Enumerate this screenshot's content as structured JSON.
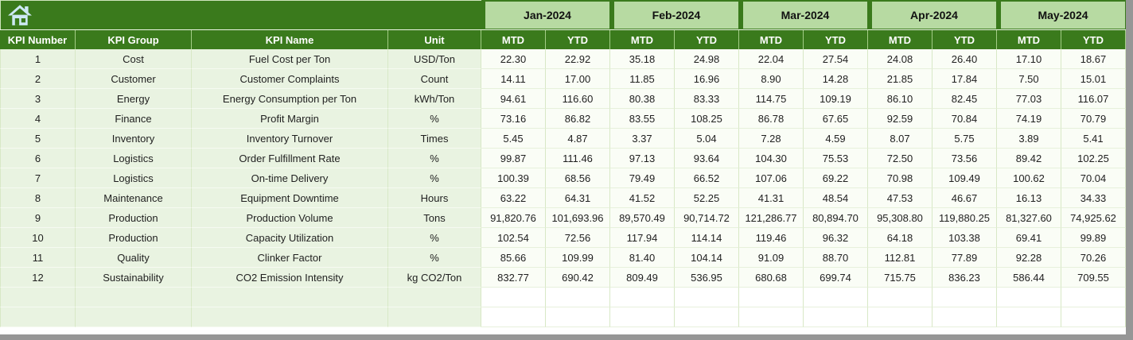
{
  "toolbar": {
    "home_icon": "home"
  },
  "left_columns": [
    "KPI Number",
    "KPI Group",
    "KPI Name",
    "Unit"
  ],
  "months": [
    "Jan-2024",
    "Feb-2024",
    "Mar-2024",
    "Apr-2024",
    "May-2024"
  ],
  "sub_columns": [
    "MTD",
    "YTD"
  ],
  "rows": [
    {
      "number": "1",
      "group": "Cost",
      "name": "Fuel Cost per Ton",
      "unit": "USD/Ton",
      "values": [
        "22.30",
        "22.92",
        "35.18",
        "24.98",
        "22.04",
        "27.54",
        "24.08",
        "26.40",
        "17.10",
        "18.67"
      ]
    },
    {
      "number": "2",
      "group": "Customer",
      "name": "Customer Complaints",
      "unit": "Count",
      "values": [
        "14.11",
        "17.00",
        "11.85",
        "16.96",
        "8.90",
        "14.28",
        "21.85",
        "17.84",
        "7.50",
        "15.01"
      ]
    },
    {
      "number": "3",
      "group": "Energy",
      "name": "Energy Consumption per Ton",
      "unit": "kWh/Ton",
      "values": [
        "94.61",
        "116.60",
        "80.38",
        "83.33",
        "114.75",
        "109.19",
        "86.10",
        "82.45",
        "77.03",
        "116.07"
      ]
    },
    {
      "number": "4",
      "group": "Finance",
      "name": "Profit Margin",
      "unit": "%",
      "values": [
        "73.16",
        "86.82",
        "83.55",
        "108.25",
        "86.78",
        "67.65",
        "92.59",
        "70.84",
        "74.19",
        "70.79"
      ]
    },
    {
      "number": "5",
      "group": "Inventory",
      "name": "Inventory Turnover",
      "unit": "Times",
      "values": [
        "5.45",
        "4.87",
        "3.37",
        "5.04",
        "7.28",
        "4.59",
        "8.07",
        "5.75",
        "3.89",
        "5.41"
      ]
    },
    {
      "number": "6",
      "group": "Logistics",
      "name": "Order Fulfillment Rate",
      "unit": "%",
      "values": [
        "99.87",
        "111.46",
        "97.13",
        "93.64",
        "104.30",
        "75.53",
        "72.50",
        "73.56",
        "89.42",
        "102.25"
      ]
    },
    {
      "number": "7",
      "group": "Logistics",
      "name": "On-time Delivery",
      "unit": "%",
      "values": [
        "100.39",
        "68.56",
        "79.49",
        "66.52",
        "107.06",
        "69.22",
        "70.98",
        "109.49",
        "100.62",
        "70.04"
      ]
    },
    {
      "number": "8",
      "group": "Maintenance",
      "name": "Equipment Downtime",
      "unit": "Hours",
      "values": [
        "63.22",
        "64.31",
        "41.52",
        "52.25",
        "41.31",
        "48.54",
        "47.53",
        "46.67",
        "16.13",
        "34.33"
      ]
    },
    {
      "number": "9",
      "group": "Production",
      "name": "Production Volume",
      "unit": "Tons",
      "values": [
        "91,820.76",
        "101,693.96",
        "89,570.49",
        "90,714.72",
        "121,286.77",
        "80,894.70",
        "95,308.80",
        "119,880.25",
        "81,327.60",
        "74,925.62"
      ]
    },
    {
      "number": "10",
      "group": "Production",
      "name": "Capacity Utilization",
      "unit": "%",
      "values": [
        "102.54",
        "72.56",
        "117.94",
        "114.14",
        "119.46",
        "96.32",
        "64.18",
        "103.38",
        "69.41",
        "99.89"
      ]
    },
    {
      "number": "11",
      "group": "Quality",
      "name": "Clinker Factor",
      "unit": "%",
      "values": [
        "85.66",
        "109.99",
        "81.40",
        "104.14",
        "91.09",
        "88.70",
        "112.81",
        "77.89",
        "92.28",
        "70.26"
      ]
    },
    {
      "number": "12",
      "group": "Sustainability",
      "name": "CO2 Emission Intensity",
      "unit": "kg CO2/Ton",
      "values": [
        "832.77",
        "690.42",
        "809.49",
        "536.95",
        "680.68",
        "699.74",
        "715.75",
        "836.23",
        "586.44",
        "709.55"
      ]
    }
  ],
  "empty_row_count": 2,
  "colors": {
    "header_dark_green": "#3a7a1c",
    "month_light_green": "#b7daa2",
    "left_cell_bg": "#e9f3e1",
    "value_cell_bg": "#fafdf6",
    "grid_line": "#d8e8c6",
    "home_icon_blue": "#cde9f4",
    "edge_gray": "#969696"
  }
}
